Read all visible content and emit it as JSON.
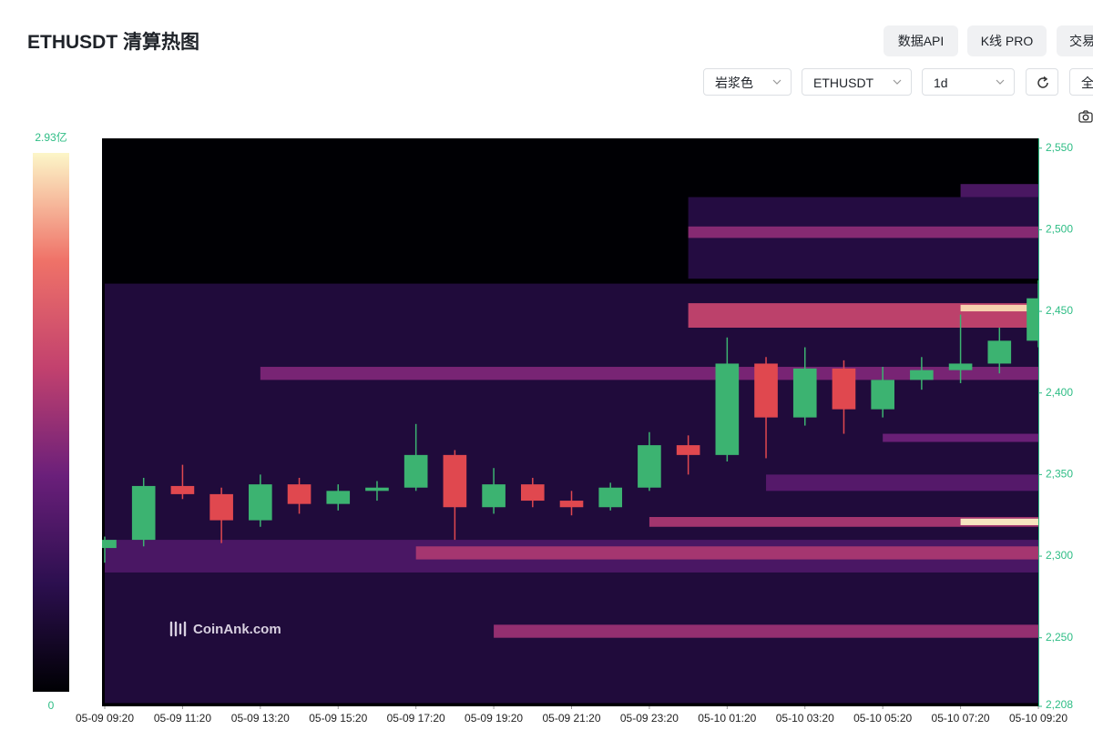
{
  "header": {
    "title": "ETHUSDT 清算热图",
    "buttons": [
      "数据API",
      "K线 PRO",
      "交易"
    ],
    "selects": [
      "岩浆色",
      "ETHUSDT",
      "1d"
    ],
    "full": "全"
  },
  "chart_data": {
    "type": "heatmap",
    "watermark": "CoinAnk.com",
    "xlim": [
      "05-09 09:20",
      "05-10 09:20"
    ],
    "xticks": [
      "05-09 09:20",
      "05-09 11:20",
      "05-09 13:20",
      "05-09 15:20",
      "05-09 17:20",
      "05-09 19:20",
      "05-09 21:20",
      "05-09 23:20",
      "05-10 01:20",
      "05-10 03:20",
      "05-10 05:20",
      "05-10 07:20",
      "05-10 09:20"
    ],
    "ylim": [
      2208,
      2556
    ],
    "yticks": [
      {
        "value": 2550,
        "label": "2,550"
      },
      {
        "value": 2500,
        "label": "2,500"
      },
      {
        "value": 2450,
        "label": "2,450"
      },
      {
        "value": 2400,
        "label": "2,400"
      },
      {
        "value": 2350,
        "label": "2,350"
      },
      {
        "value": 2300,
        "label": "2,300"
      },
      {
        "value": 2250,
        "label": "2,250"
      },
      {
        "value": 2208,
        "label": "2,208"
      }
    ],
    "clim": [
      0,
      2.93
    ],
    "cticks": [
      {
        "value": 2.93,
        "label": "2.93亿"
      },
      0
    ],
    "colorscale": [
      "#000004",
      "#2c0f4f",
      "#6a1f7a",
      "#c2416e",
      "#ef7268",
      "#fcf6c8"
    ],
    "bands": {
      "lows": [
        2210,
        2290,
        2298,
        2250,
        2318,
        2440,
        2408,
        2470,
        2495,
        2520,
        2340,
        2370,
        2319,
        2450
      ],
      "highs": [
        2467,
        2310,
        2306,
        2258,
        2324,
        2455,
        2416,
        2520,
        2502,
        2528,
        2350,
        2375,
        2323,
        2454
      ],
      "starts": [
        "05-09 09:20",
        "05-09 09:20",
        "05-09 17:20",
        "05-09 19:20",
        "05-09 23:20",
        "05-10 00:20",
        "05-09 13:20",
        "05-10 00:20",
        "05-10 00:20",
        "05-10 07:20",
        "05-10 02:20",
        "05-10 05:20",
        "05-10 07:20",
        "05-10 07:20"
      ],
      "values": [
        0.45,
        0.9,
        1.6,
        1.5,
        1.6,
        1.8,
        1.3,
        0.5,
        1.4,
        0.9,
        1.0,
        1.2,
        2.9,
        2.8
      ]
    },
    "up_color": "#3cb371",
    "down_color": "#e0484f",
    "candles": {
      "x": [
        "05-09 09:20",
        "05-09 10:20",
        "05-09 11:20",
        "05-09 12:20",
        "05-09 13:20",
        "05-09 14:20",
        "05-09 15:20",
        "05-09 16:20",
        "05-09 17:20",
        "05-09 18:20",
        "05-09 19:20",
        "05-09 20:20",
        "05-09 21:20",
        "05-09 22:20",
        "05-09 23:20",
        "05-10 00:20",
        "05-10 01:20",
        "05-10 02:20",
        "05-10 03:20",
        "05-10 04:20",
        "05-10 05:20",
        "05-10 06:20",
        "05-10 07:20",
        "05-10 08:20",
        "05-10 09:20"
      ],
      "open": [
        2305,
        2310,
        2343,
        2338,
        2322,
        2344,
        2332,
        2340,
        2342,
        2362,
        2330,
        2344,
        2334,
        2330,
        2342,
        2368,
        2362,
        2418,
        2385,
        2415,
        2390,
        2408,
        2414,
        2418,
        2432
      ],
      "high": [
        2312,
        2348,
        2356,
        2342,
        2350,
        2348,
        2344,
        2346,
        2381,
        2365,
        2354,
        2348,
        2340,
        2345,
        2376,
        2374,
        2434,
        2422,
        2428,
        2420,
        2416,
        2422,
        2448,
        2440,
        2469
      ],
      "low": [
        2296,
        2306,
        2335,
        2308,
        2318,
        2326,
        2328,
        2334,
        2340,
        2310,
        2326,
        2330,
        2325,
        2328,
        2340,
        2350,
        2358,
        2360,
        2380,
        2375,
        2385,
        2402,
        2406,
        2412,
        2428
      ],
      "close": [
        2310,
        2343,
        2338,
        2322,
        2344,
        2332,
        2340,
        2342,
        2362,
        2330,
        2344,
        2334,
        2330,
        2342,
        2368,
        2362,
        2418,
        2385,
        2415,
        2390,
        2408,
        2414,
        2418,
        2432,
        2458
      ]
    }
  }
}
